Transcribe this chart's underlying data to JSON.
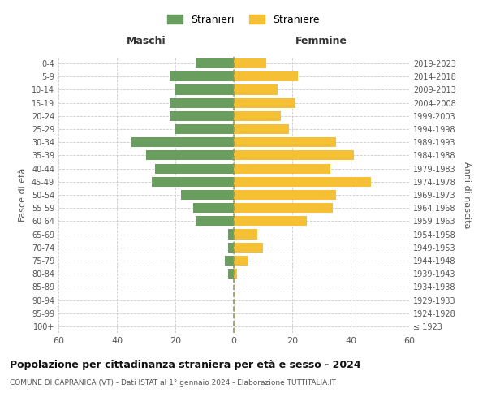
{
  "age_groups": [
    "100+",
    "95-99",
    "90-94",
    "85-89",
    "80-84",
    "75-79",
    "70-74",
    "65-69",
    "60-64",
    "55-59",
    "50-54",
    "45-49",
    "40-44",
    "35-39",
    "30-34",
    "25-29",
    "20-24",
    "15-19",
    "10-14",
    "5-9",
    "0-4"
  ],
  "birth_years": [
    "≤ 1923",
    "1924-1928",
    "1929-1933",
    "1934-1938",
    "1939-1943",
    "1944-1948",
    "1949-1953",
    "1954-1958",
    "1959-1963",
    "1964-1968",
    "1969-1973",
    "1974-1978",
    "1979-1983",
    "1984-1988",
    "1989-1993",
    "1994-1998",
    "1999-2003",
    "2004-2008",
    "2009-2013",
    "2014-2018",
    "2019-2023"
  ],
  "males": [
    0,
    0,
    0,
    0,
    2,
    3,
    2,
    2,
    13,
    14,
    18,
    28,
    27,
    30,
    35,
    20,
    22,
    22,
    20,
    22,
    13
  ],
  "females": [
    0,
    0,
    0,
    0,
    1,
    5,
    10,
    8,
    25,
    34,
    35,
    47,
    33,
    41,
    35,
    19,
    16,
    21,
    15,
    22,
    11
  ],
  "male_color": "#6a9e5e",
  "female_color": "#f5c033",
  "male_label": "Stranieri",
  "female_label": "Straniere",
  "title": "Popolazione per cittadinanza straniera per età e sesso - 2024",
  "subtitle": "COMUNE DI CAPRANICA (VT) - Dati ISTAT al 1° gennaio 2024 - Elaborazione TUTTITALIA.IT",
  "xlabel_left": "Maschi",
  "xlabel_right": "Femmine",
  "ylabel_left": "Fasce di età",
  "ylabel_right": "Anni di nascita",
  "xlim": 60,
  "bg_color": "#ffffff",
  "grid_color": "#cccccc",
  "dashed_line_color": "#999955"
}
